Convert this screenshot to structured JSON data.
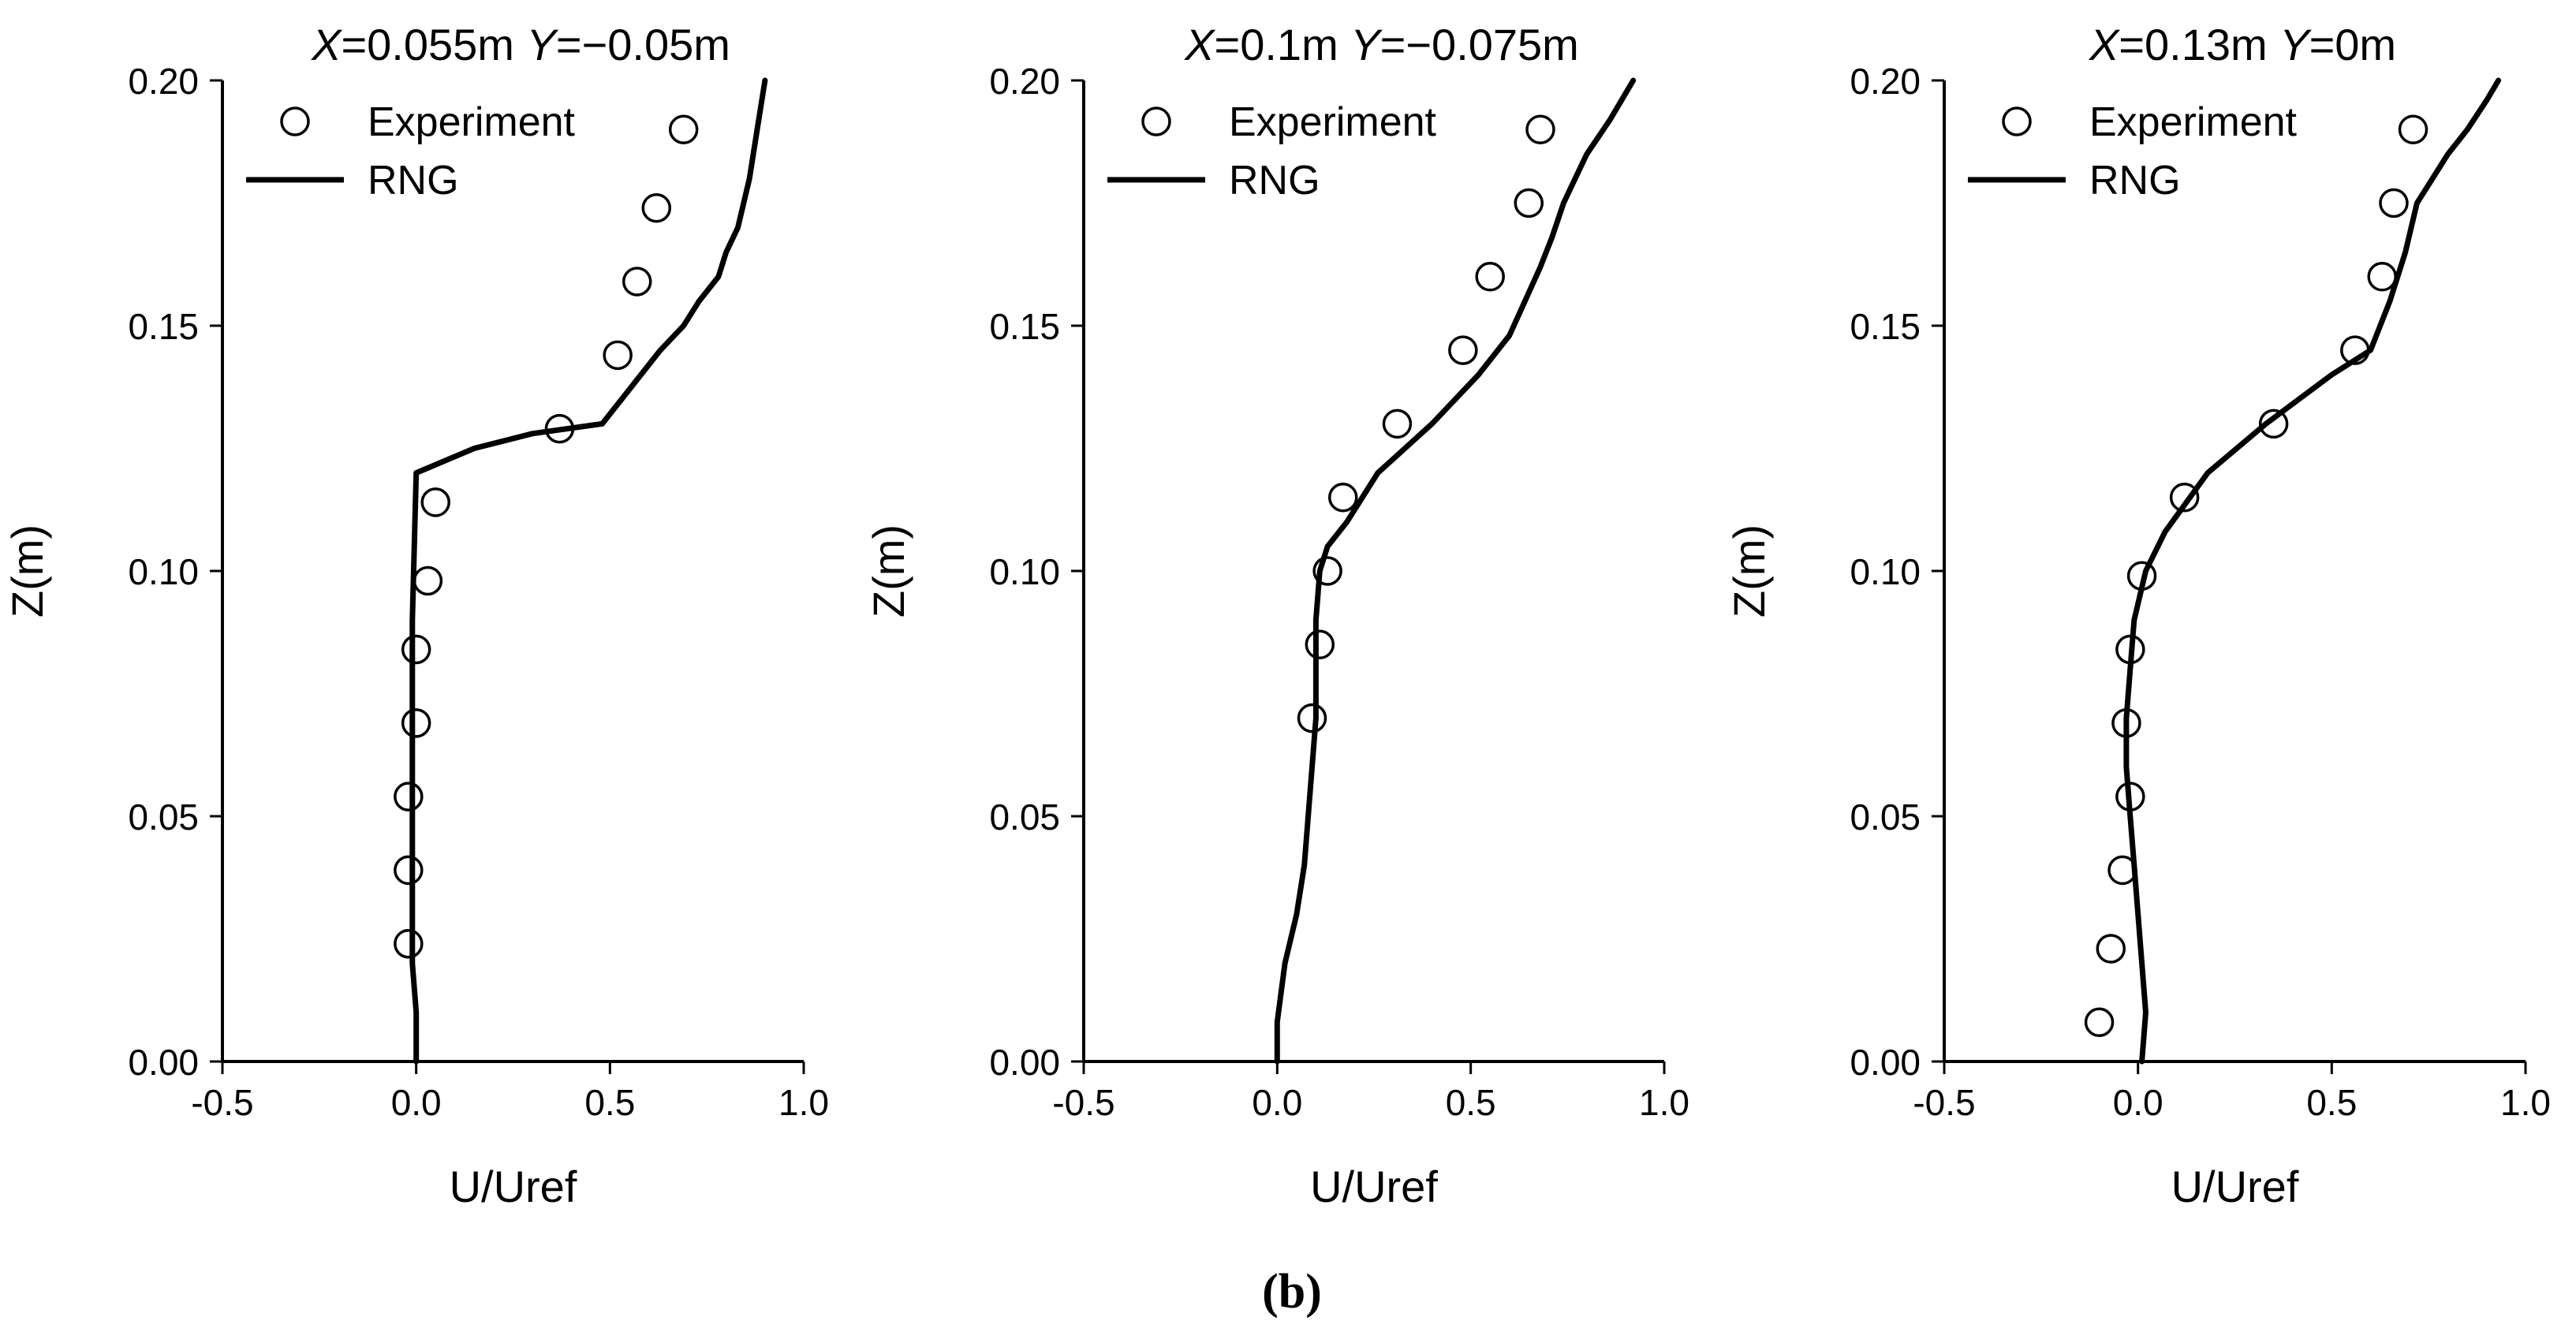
{
  "figure": {
    "panel_label": "(b)"
  },
  "chart_data": [
    {
      "type": "scatter",
      "title": "X=0.055m Y=−0.05m",
      "title_parts": [
        {
          "text": "X",
          "italic": true
        },
        {
          "text": "=0.055m ",
          "italic": false
        },
        {
          "text": "Y",
          "italic": true
        },
        {
          "text": "=−0.05m",
          "italic": false
        }
      ],
      "xlabel": "U/Uref",
      "ylabel": "Z(m)",
      "xlim": [
        -0.5,
        1.0
      ],
      "ylim": [
        0.0,
        0.2
      ],
      "xticks": [
        "-0.5",
        "0.0",
        "0.5",
        "1.0"
      ],
      "yticks": [
        "0.00",
        "0.05",
        "0.10",
        "0.15",
        "0.20"
      ],
      "legend_position": "top-left",
      "series": [
        {
          "name": "Experiment",
          "kind": "markers",
          "x": [
            -0.02,
            -0.02,
            -0.02,
            0.0,
            0.0,
            0.03,
            0.05,
            0.37,
            0.52,
            0.57,
            0.62,
            0.69
          ],
          "y": [
            0.024,
            0.039,
            0.054,
            0.069,
            0.084,
            0.098,
            0.114,
            0.129,
            0.144,
            0.159,
            0.174,
            0.19
          ]
        },
        {
          "name": "RNG",
          "kind": "line",
          "x": [
            0.0,
            0.0,
            -0.01,
            -0.01,
            -0.01,
            -0.01,
            -0.01,
            -0.01,
            -0.01,
            -0.01,
            0.0,
            0.15,
            0.3,
            0.48,
            0.53,
            0.58,
            0.63,
            0.69,
            0.73,
            0.78,
            0.8,
            0.83,
            0.86,
            0.88,
            0.9
          ],
          "y": [
            0.0,
            0.01,
            0.02,
            0.03,
            0.04,
            0.05,
            0.06,
            0.07,
            0.08,
            0.09,
            0.12,
            0.125,
            0.128,
            0.13,
            0.135,
            0.14,
            0.145,
            0.15,
            0.155,
            0.16,
            0.165,
            0.17,
            0.18,
            0.19,
            0.2
          ]
        }
      ]
    },
    {
      "type": "scatter",
      "title": "X=0.1m Y=−0.075m",
      "title_parts": [
        {
          "text": "X",
          "italic": true
        },
        {
          "text": "=0.1m ",
          "italic": false
        },
        {
          "text": "Y",
          "italic": true
        },
        {
          "text": "=−0.075m",
          "italic": false
        }
      ],
      "xlabel": "U/Uref",
      "ylabel": "Z(m)",
      "xlim": [
        -0.5,
        1.0
      ],
      "ylim": [
        0.0,
        0.2
      ],
      "xticks": [
        "-0.5",
        "0.0",
        "0.5",
        "1.0"
      ],
      "yticks": [
        "0.00",
        "0.05",
        "0.10",
        "0.15",
        "0.20"
      ],
      "legend_position": "top-left",
      "series": [
        {
          "name": "Experiment",
          "kind": "markers",
          "x": [
            0.09,
            0.11,
            0.13,
            0.17,
            0.31,
            0.48,
            0.55,
            0.65,
            0.68
          ],
          "y": [
            0.07,
            0.085,
            0.1,
            0.115,
            0.13,
            0.145,
            0.16,
            0.175,
            0.19
          ]
        },
        {
          "name": "RNG",
          "kind": "line",
          "x": [
            0.0,
            0.0,
            0.02,
            0.05,
            0.07,
            0.08,
            0.09,
            0.1,
            0.1,
            0.1,
            0.11,
            0.13,
            0.18,
            0.26,
            0.4,
            0.52,
            0.6,
            0.64,
            0.68,
            0.71,
            0.74,
            0.77,
            0.8,
            0.86,
            0.92
          ],
          "y": [
            0.0,
            0.008,
            0.02,
            0.03,
            0.04,
            0.05,
            0.06,
            0.07,
            0.08,
            0.09,
            0.1,
            0.105,
            0.11,
            0.12,
            0.13,
            0.14,
            0.148,
            0.155,
            0.162,
            0.168,
            0.175,
            0.18,
            0.185,
            0.192,
            0.2
          ]
        }
      ]
    },
    {
      "type": "scatter",
      "title": "X=0.13m Y=0m",
      "title_parts": [
        {
          "text": "X",
          "italic": true
        },
        {
          "text": "=0.13m ",
          "italic": false
        },
        {
          "text": "Y",
          "italic": true
        },
        {
          "text": "=0m",
          "italic": false
        }
      ],
      "xlabel": "U/Uref",
      "ylabel": "Z(m)",
      "xlim": [
        -0.5,
        1.0
      ],
      "ylim": [
        0.0,
        0.2
      ],
      "xticks": [
        "-0.5",
        "0.0",
        "0.5",
        "1.0"
      ],
      "yticks": [
        "0.00",
        "0.05",
        "0.10",
        "0.15",
        "0.20"
      ],
      "legend_position": "top-left",
      "series": [
        {
          "name": "Experiment",
          "kind": "markers",
          "x": [
            -0.1,
            -0.07,
            -0.04,
            -0.02,
            -0.03,
            -0.02,
            0.01,
            0.12,
            0.35,
            0.56,
            0.63,
            0.66,
            0.71
          ],
          "y": [
            0.008,
            0.023,
            0.039,
            0.054,
            0.069,
            0.084,
            0.099,
            0.115,
            0.13,
            0.145,
            0.16,
            0.175,
            0.19
          ]
        },
        {
          "name": "RNG",
          "kind": "line",
          "x": [
            0.01,
            0.02,
            0.01,
            0.0,
            -0.01,
            -0.02,
            -0.03,
            -0.03,
            -0.02,
            -0.01,
            0.02,
            0.07,
            0.18,
            0.33,
            0.5,
            0.6,
            0.65,
            0.69,
            0.72,
            0.76,
            0.8,
            0.85,
            0.9,
            0.93
          ],
          "y": [
            0.0,
            0.01,
            0.02,
            0.03,
            0.04,
            0.05,
            0.06,
            0.07,
            0.08,
            0.09,
            0.1,
            0.108,
            0.12,
            0.13,
            0.14,
            0.145,
            0.155,
            0.165,
            0.175,
            0.18,
            0.185,
            0.19,
            0.196,
            0.2
          ]
        }
      ]
    }
  ]
}
